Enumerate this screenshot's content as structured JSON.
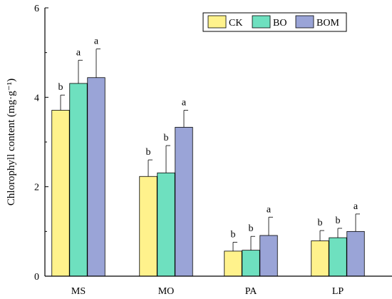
{
  "chart_data": {
    "type": "bar",
    "title": "",
    "xlabel": "",
    "ylabel": "Chlorophyll content (mg·g⁻¹)",
    "ylim": [
      0,
      6
    ],
    "yticks": [
      0,
      2,
      4,
      6
    ],
    "categories": [
      "MS",
      "MO",
      "PA",
      "LP"
    ],
    "legend_position": "top-right",
    "grid": false,
    "series": [
      {
        "name": "CK",
        "color": "#fff28c",
        "values": [
          3.71,
          2.23,
          0.56,
          0.79
        ],
        "errors": [
          0.34,
          0.37,
          0.2,
          0.23
        ],
        "significance": [
          "b",
          "b",
          "b",
          "b"
        ]
      },
      {
        "name": "BO",
        "color": "#6ee0bf",
        "values": [
          4.31,
          2.31,
          0.58,
          0.86
        ],
        "errors": [
          0.52,
          0.61,
          0.31,
          0.21
        ],
        "significance": [
          "a",
          "b",
          "b",
          "b"
        ]
      },
      {
        "name": "BOM",
        "color": "#9aa4d7",
        "values": [
          4.44,
          3.33,
          0.91,
          1.0
        ],
        "errors": [
          0.64,
          0.38,
          0.41,
          0.39
        ],
        "significance": [
          "a",
          "a",
          "a",
          "a"
        ]
      }
    ]
  }
}
